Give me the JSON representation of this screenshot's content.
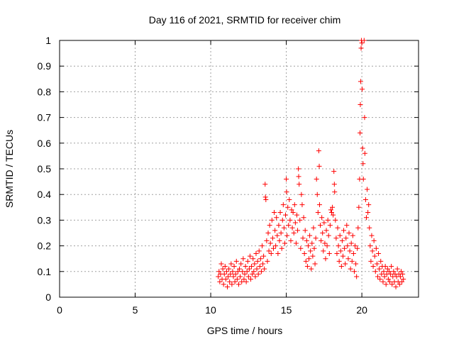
{
  "chart_data": {
    "type": "scatter",
    "title": "Day 116 of 2021, SRMTID for receiver chim",
    "xlabel": "GPS time / hours",
    "ylabel": "SRMTID / TECUs",
    "xlim": [
      0,
      23.75
    ],
    "ylim": [
      0,
      1
    ],
    "xticks": [
      0,
      5,
      10,
      15,
      20
    ],
    "xtick_labels": [
      "0",
      "5",
      "10",
      "15",
      "20"
    ],
    "yticks": [
      0,
      0.1,
      0.2,
      0.3,
      0.4,
      0.5,
      0.6,
      0.7,
      0.8,
      0.9,
      1
    ],
    "ytick_labels": [
      "0",
      "0.1",
      "0.2",
      "0.3",
      "0.4",
      "0.5",
      "0.6",
      "0.7",
      "0.8",
      "0.9",
      "1"
    ],
    "grid": true,
    "series": [
      {
        "name": "SRMTID",
        "color": "#ff0000",
        "marker": "plus",
        "points": [
          [
            10.5,
            0.08
          ],
          [
            10.55,
            0.1
          ],
          [
            10.6,
            0.06
          ],
          [
            10.65,
            0.09
          ],
          [
            10.7,
            0.13
          ],
          [
            10.75,
            0.07
          ],
          [
            10.8,
            0.11
          ],
          [
            10.85,
            0.05
          ],
          [
            10.9,
            0.09
          ],
          [
            10.95,
            0.12
          ],
          [
            11.0,
            0.07
          ],
          [
            11.05,
            0.1
          ],
          [
            11.1,
            0.04
          ],
          [
            11.15,
            0.08
          ],
          [
            11.2,
            0.11
          ],
          [
            11.25,
            0.06
          ],
          [
            11.3,
            0.09
          ],
          [
            11.35,
            0.13
          ],
          [
            11.4,
            0.05
          ],
          [
            11.45,
            0.1
          ],
          [
            11.5,
            0.08
          ],
          [
            11.55,
            0.12
          ],
          [
            11.6,
            0.06
          ],
          [
            11.65,
            0.09
          ],
          [
            11.7,
            0.14
          ],
          [
            11.75,
            0.07
          ],
          [
            11.8,
            0.1
          ],
          [
            11.85,
            0.05
          ],
          [
            11.9,
            0.11
          ],
          [
            11.95,
            0.08
          ],
          [
            12.0,
            0.13
          ],
          [
            12.05,
            0.06
          ],
          [
            12.1,
            0.1
          ],
          [
            12.15,
            0.15
          ],
          [
            12.2,
            0.07
          ],
          [
            12.25,
            0.09
          ],
          [
            12.3,
            0.12
          ],
          [
            12.35,
            0.06
          ],
          [
            12.4,
            0.1
          ],
          [
            12.45,
            0.14
          ],
          [
            12.5,
            0.08
          ],
          [
            12.55,
            0.11
          ],
          [
            12.6,
            0.16
          ],
          [
            12.65,
            0.07
          ],
          [
            12.7,
            0.12
          ],
          [
            12.75,
            0.09
          ],
          [
            12.8,
            0.15
          ],
          [
            12.85,
            0.1
          ],
          [
            12.9,
            0.13
          ],
          [
            12.95,
            0.08
          ],
          [
            13.0,
            0.17
          ],
          [
            13.05,
            0.11
          ],
          [
            13.1,
            0.14
          ],
          [
            13.15,
            0.09
          ],
          [
            13.2,
            0.18
          ],
          [
            13.25,
            0.12
          ],
          [
            13.3,
            0.15
          ],
          [
            13.35,
            0.1
          ],
          [
            13.4,
            0.2
          ],
          [
            13.45,
            0.13
          ],
          [
            13.5,
            0.16
          ],
          [
            13.55,
            0.11
          ],
          [
            13.6,
            0.44
          ],
          [
            13.62,
            0.39
          ],
          [
            13.65,
            0.38
          ],
          [
            13.7,
            0.22
          ],
          [
            13.75,
            0.14
          ],
          [
            13.8,
            0.25
          ],
          [
            13.85,
            0.18
          ],
          [
            13.9,
            0.28
          ],
          [
            13.95,
            0.21
          ],
          [
            14.0,
            0.17
          ],
          [
            14.05,
            0.3
          ],
          [
            14.1,
            0.23
          ],
          [
            14.15,
            0.19
          ],
          [
            14.2,
            0.33
          ],
          [
            14.25,
            0.26
          ],
          [
            14.3,
            0.2
          ],
          [
            14.35,
            0.31
          ],
          [
            14.4,
            0.24
          ],
          [
            14.45,
            0.17
          ],
          [
            14.5,
            0.28
          ],
          [
            14.55,
            0.22
          ],
          [
            14.6,
            0.33
          ],
          [
            14.65,
            0.25
          ],
          [
            14.7,
            0.19
          ],
          [
            14.75,
            0.3
          ],
          [
            14.8,
            0.36
          ],
          [
            14.85,
            0.27
          ],
          [
            14.9,
            0.21
          ],
          [
            14.95,
            0.32
          ],
          [
            15.0,
            0.46
          ],
          [
            15.02,
            0.41
          ],
          [
            15.05,
            0.24
          ],
          [
            15.1,
            0.35
          ],
          [
            15.15,
            0.28
          ],
          [
            15.2,
            0.38
          ],
          [
            15.25,
            0.3
          ],
          [
            15.3,
            0.22
          ],
          [
            15.35,
            0.34
          ],
          [
            15.4,
            0.27
          ],
          [
            15.45,
            0.33
          ],
          [
            15.5,
            0.25
          ],
          [
            15.55,
            0.36
          ],
          [
            15.6,
            0.29
          ],
          [
            15.65,
            0.21
          ],
          [
            15.7,
            0.32
          ],
          [
            15.75,
            0.26
          ],
          [
            15.8,
            0.5
          ],
          [
            15.82,
            0.47
          ],
          [
            15.85,
            0.44
          ],
          [
            15.9,
            0.3
          ],
          [
            15.95,
            0.19
          ],
          [
            16.0,
            0.4
          ],
          [
            16.05,
            0.36
          ],
          [
            16.1,
            0.23
          ],
          [
            16.15,
            0.31
          ],
          [
            16.2,
            0.17
          ],
          [
            16.25,
            0.26
          ],
          [
            16.3,
            0.14
          ],
          [
            16.35,
            0.22
          ],
          [
            16.4,
            0.12
          ],
          [
            16.45,
            0.2
          ],
          [
            16.5,
            0.15
          ],
          [
            16.55,
            0.24
          ],
          [
            16.6,
            0.18
          ],
          [
            16.65,
            0.11
          ],
          [
            16.7,
            0.21
          ],
          [
            16.75,
            0.16
          ],
          [
            16.8,
            0.27
          ],
          [
            16.85,
            0.19
          ],
          [
            16.9,
            0.13
          ],
          [
            16.95,
            0.23
          ],
          [
            17.0,
            0.46
          ],
          [
            17.05,
            0.4
          ],
          [
            17.1,
            0.33
          ],
          [
            17.15,
            0.57
          ],
          [
            17.18,
            0.51
          ],
          [
            17.2,
            0.36
          ],
          [
            17.25,
            0.28
          ],
          [
            17.3,
            0.22
          ],
          [
            17.35,
            0.31
          ],
          [
            17.4,
            0.25
          ],
          [
            17.45,
            0.18
          ],
          [
            17.5,
            0.29
          ],
          [
            17.55,
            0.21
          ],
          [
            17.6,
            0.15
          ],
          [
            17.65,
            0.26
          ],
          [
            17.7,
            0.2
          ],
          [
            17.75,
            0.3
          ],
          [
            17.8,
            0.24
          ],
          [
            17.85,
            0.17
          ],
          [
            17.9,
            0.28
          ],
          [
            17.95,
            0.34
          ],
          [
            18.0,
            0.33
          ],
          [
            18.05,
            0.35
          ],
          [
            18.1,
            0.32
          ],
          [
            18.15,
            0.49
          ],
          [
            18.18,
            0.44
          ],
          [
            18.2,
            0.41
          ],
          [
            18.25,
            0.3
          ],
          [
            18.3,
            0.23
          ],
          [
            18.35,
            0.17
          ],
          [
            18.4,
            0.27
          ],
          [
            18.45,
            0.2
          ],
          [
            18.5,
            0.14
          ],
          [
            18.55,
            0.24
          ],
          [
            18.6,
            0.18
          ],
          [
            18.65,
            0.12
          ],
          [
            18.7,
            0.22
          ],
          [
            18.75,
            0.16
          ],
          [
            18.8,
            0.26
          ],
          [
            18.85,
            0.19
          ],
          [
            18.9,
            0.13
          ],
          [
            18.95,
            0.23
          ],
          [
            19.0,
            0.28
          ],
          [
            19.05,
            0.2
          ],
          [
            19.1,
            0.15
          ],
          [
            19.15,
            0.25
          ],
          [
            19.2,
            0.18
          ],
          [
            19.25,
            0.11
          ],
          [
            19.3,
            0.21
          ],
          [
            19.35,
            0.14
          ],
          [
            19.4,
            0.24
          ],
          [
            19.45,
            0.17
          ],
          [
            19.5,
            0.1
          ],
          [
            19.55,
            0.2
          ],
          [
            19.6,
            0.13
          ],
          [
            19.65,
            0.08
          ],
          [
            19.7,
            0.19
          ],
          [
            19.75,
            0.27
          ],
          [
            19.8,
            0.35
          ],
          [
            19.85,
            0.46
          ],
          [
            19.88,
            0.64
          ],
          [
            19.9,
            0.75
          ],
          [
            19.92,
            0.84
          ],
          [
            19.95,
            0.97
          ],
          [
            19.97,
            1.0
          ],
          [
            20.0,
            0.99
          ],
          [
            20.02,
            0.81
          ],
          [
            20.05,
            0.58
          ],
          [
            20.08,
            0.52
          ],
          [
            20.1,
            0.46
          ],
          [
            20.15,
            1.0
          ],
          [
            20.18,
            0.7
          ],
          [
            20.2,
            0.56
          ],
          [
            20.25,
            0.38
          ],
          [
            20.3,
            0.31
          ],
          [
            20.35,
            0.42
          ],
          [
            20.4,
            0.33
          ],
          [
            20.45,
            0.36
          ],
          [
            20.5,
            0.27
          ],
          [
            20.55,
            0.2
          ],
          [
            20.6,
            0.14
          ],
          [
            20.65,
            0.24
          ],
          [
            20.7,
            0.18
          ],
          [
            20.75,
            0.12
          ],
          [
            20.8,
            0.22
          ],
          [
            20.85,
            0.16
          ],
          [
            20.9,
            0.1
          ],
          [
            20.95,
            0.19
          ],
          [
            21.0,
            0.13
          ],
          [
            21.05,
            0.08
          ],
          [
            21.1,
            0.17
          ],
          [
            21.15,
            0.11
          ],
          [
            21.2,
            0.07
          ],
          [
            21.25,
            0.14
          ],
          [
            21.3,
            0.09
          ],
          [
            21.35,
            0.12
          ],
          [
            21.4,
            0.06
          ],
          [
            21.45,
            0.1
          ],
          [
            21.5,
            0.08
          ],
          [
            21.55,
            0.12
          ],
          [
            21.6,
            0.05
          ],
          [
            21.65,
            0.09
          ],
          [
            21.7,
            0.11
          ],
          [
            21.75,
            0.07
          ],
          [
            21.8,
            0.1
          ],
          [
            21.85,
            0.06
          ],
          [
            21.9,
            0.09
          ],
          [
            21.95,
            0.12
          ],
          [
            22.0,
            0.05
          ],
          [
            22.05,
            0.08
          ],
          [
            22.1,
            0.1
          ],
          [
            22.15,
            0.06
          ],
          [
            22.2,
            0.09
          ],
          [
            22.25,
            0.04
          ],
          [
            22.3,
            0.08
          ],
          [
            22.35,
            0.11
          ],
          [
            22.4,
            0.06
          ],
          [
            22.45,
            0.09
          ],
          [
            22.5,
            0.05
          ],
          [
            22.55,
            0.08
          ],
          [
            22.6,
            0.1
          ],
          [
            22.65,
            0.06
          ],
          [
            22.7,
            0.09
          ],
          [
            22.75,
            0.07
          ]
        ]
      }
    ]
  }
}
